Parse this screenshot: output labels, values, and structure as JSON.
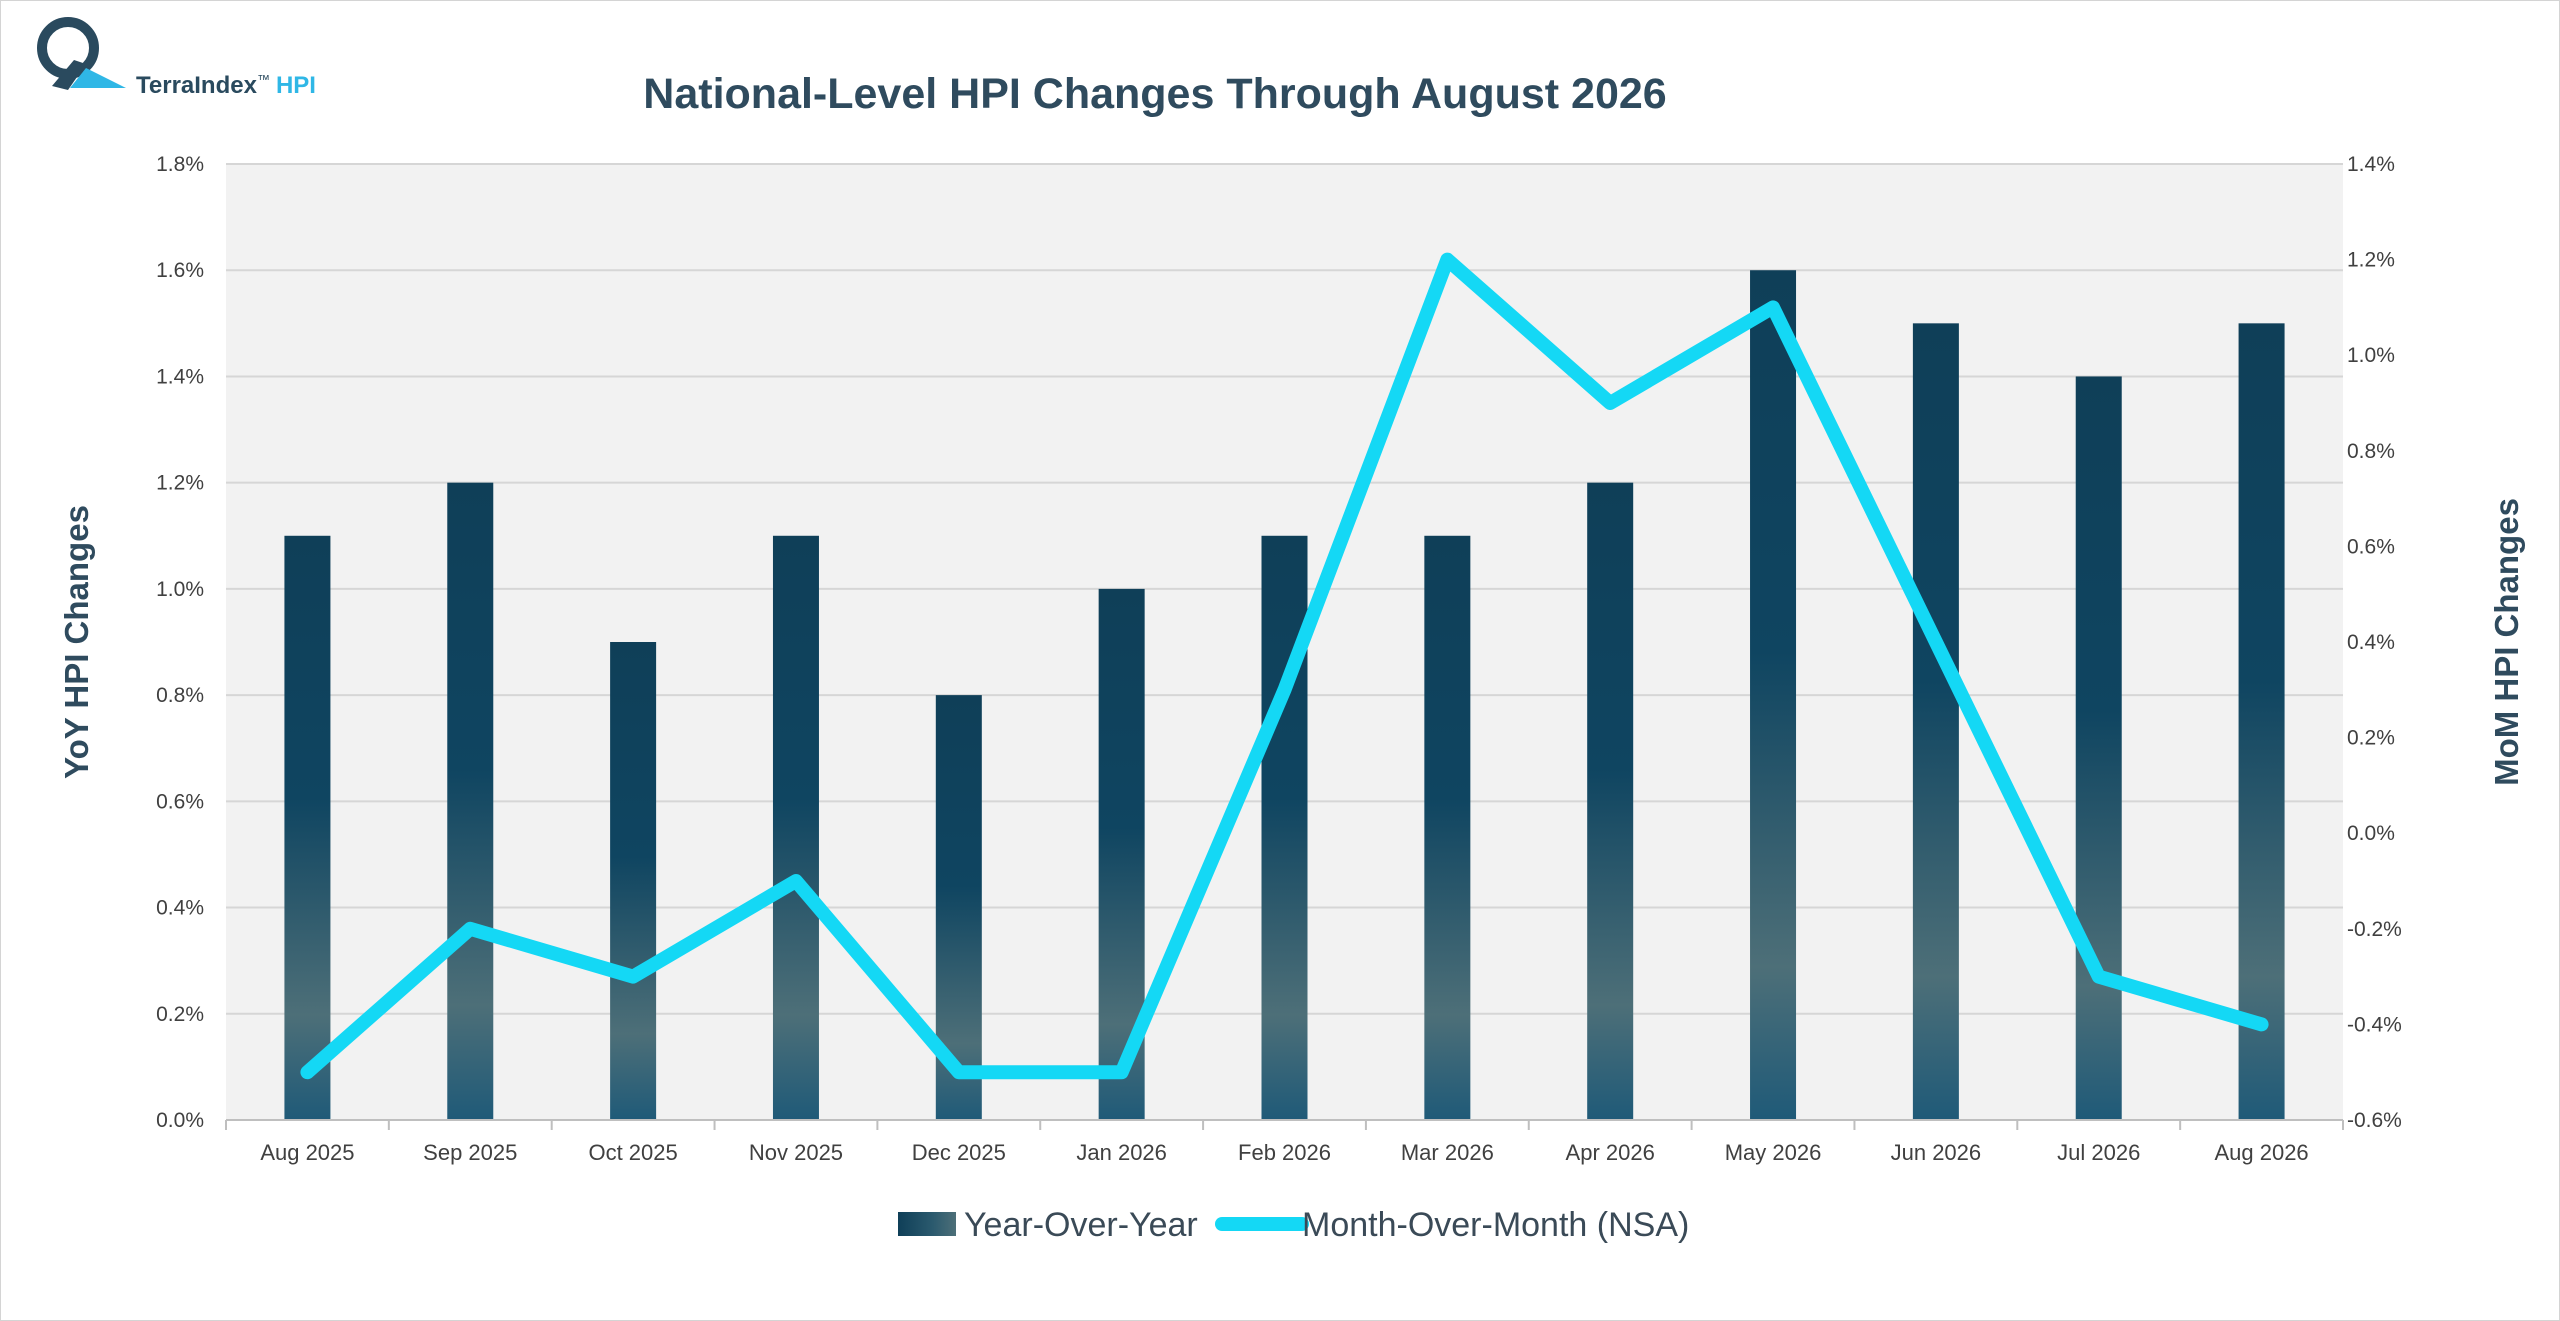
{
  "brand": {
    "name": "TerraIndex",
    "trademark": "™",
    "product": "HPI",
    "colors": {
      "dark": "#2a4a5e",
      "accent": "#2fb7e6"
    }
  },
  "chart_data": {
    "type": "bar",
    "title": "National-Level HPI Changes Through August 2026",
    "categories": [
      "Aug 2025",
      "Sep 2025",
      "Oct 2025",
      "Nov 2025",
      "Dec 2025",
      "Jan 2026",
      "Feb 2026",
      "Mar 2026",
      "Apr 2026",
      "May 2026",
      "Jun 2026",
      "Jul 2026",
      "Aug 2026"
    ],
    "series": [
      {
        "name": "Year-Over-Year",
        "type": "bar",
        "axis": "left",
        "values": [
          1.1,
          1.2,
          0.9,
          1.1,
          0.8,
          1.0,
          1.1,
          1.1,
          1.2,
          1.6,
          1.5,
          1.4,
          1.5
        ],
        "color": "#0f4561"
      },
      {
        "name": "Month-Over-Month (NSA)",
        "type": "line",
        "axis": "right",
        "values": [
          -0.5,
          -0.2,
          -0.3,
          -0.1,
          -0.5,
          -0.5,
          0.3,
          1.2,
          0.9,
          1.1,
          0.4,
          -0.3,
          -0.4
        ],
        "color": "#14d8f5"
      }
    ],
    "y_left": {
      "label": "YoY HPI Changes",
      "range": [
        0.0,
        1.8
      ],
      "ticks": [
        "0.0%",
        "0.2%",
        "0.4%",
        "0.6%",
        "0.8%",
        "1.0%",
        "1.2%",
        "1.4%",
        "1.6%",
        "1.8%"
      ]
    },
    "y_right": {
      "label": "MoM HPI Changes",
      "range": [
        -0.6,
        1.4
      ],
      "ticks": [
        "-0.6%",
        "-0.4%",
        "-0.2%",
        "0.0%",
        "0.2%",
        "0.4%",
        "0.6%",
        "0.8%",
        "1.0%",
        "1.2%",
        "1.4%"
      ]
    },
    "grid": true,
    "legend_position": "bottom",
    "plot_background": "#f2f2f2"
  }
}
